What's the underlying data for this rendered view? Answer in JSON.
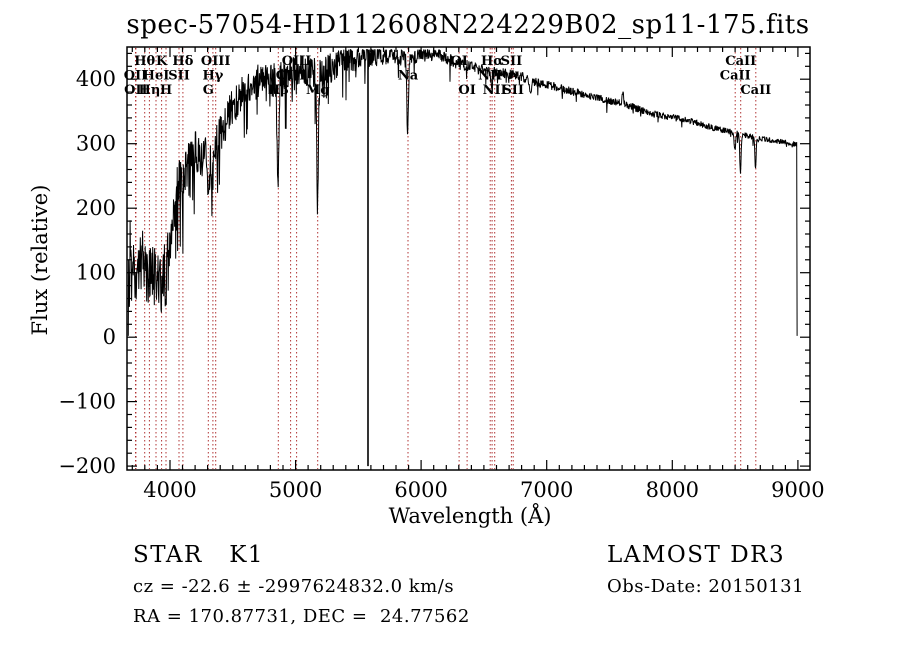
{
  "title": "spec-57054-HD112608N224229B02_sp11-175.fits",
  "colors": {
    "spectrum": "#000000",
    "line_markers": "#b03333",
    "text": "#000000",
    "background": "#ffffff"
  },
  "footer": {
    "class_label": "STAR   K1",
    "survey": "LAMOST DR3",
    "cz_line": "cz = -22.6 ± -2997624832.0 km/s",
    "obs_date": "Obs-Date: 20150131",
    "radec": "RA = 170.87731, DEC =  24.77562"
  },
  "chart_data": {
    "type": "line",
    "title": "spec-57054-HD112608N224229B02_sp11-175.fits",
    "xlabel": "Wavelength (Å)",
    "ylabel": "Flux (relative)",
    "xlim": [
      3658,
      9096
    ],
    "ylim": [
      -206,
      450
    ],
    "xticks": [
      4000,
      5000,
      6000,
      7000,
      8000,
      9000
    ],
    "yticks": [
      -200,
      -100,
      0,
      100,
      200,
      300,
      400
    ],
    "x_minor_step": 100,
    "y_minor_step": 20,
    "grid": false,
    "legend": "none",
    "spectrum_start": 3668,
    "spectrum_end": 8990,
    "sky_artifact_wavelength": 5577,
    "continuum_points": [
      [
        3668,
        5
      ],
      [
        3672,
        120
      ],
      [
        3676,
        60
      ],
      [
        3684,
        150
      ],
      [
        3692,
        95
      ],
      [
        3700,
        95
      ],
      [
        3730,
        88
      ],
      [
        3760,
        128
      ],
      [
        3800,
        105
      ],
      [
        3840,
        95
      ],
      [
        3880,
        105
      ],
      [
        3920,
        95
      ],
      [
        3960,
        115
      ],
      [
        4000,
        150
      ],
      [
        4050,
        222
      ],
      [
        4100,
        260
      ],
      [
        4150,
        270
      ],
      [
        4200,
        287
      ],
      [
        4260,
        281
      ],
      [
        4320,
        277
      ],
      [
        4380,
        303
      ],
      [
        4440,
        328
      ],
      [
        4500,
        358
      ],
      [
        4560,
        376
      ],
      [
        4620,
        388
      ],
      [
        4700,
        396
      ],
      [
        4780,
        397
      ],
      [
        4860,
        400
      ],
      [
        4940,
        410
      ],
      [
        5020,
        414
      ],
      [
        5100,
        411
      ],
      [
        5180,
        409
      ],
      [
        5260,
        414
      ],
      [
        5340,
        424
      ],
      [
        5420,
        429
      ],
      [
        5500,
        435
      ],
      [
        5580,
        437
      ],
      [
        5660,
        437
      ],
      [
        5740,
        437
      ],
      [
        5820,
        435
      ],
      [
        5900,
        429
      ],
      [
        5980,
        437
      ],
      [
        6060,
        439
      ],
      [
        6140,
        437
      ],
      [
        6220,
        431
      ],
      [
        6300,
        424
      ],
      [
        6400,
        419
      ],
      [
        6500,
        414
      ],
      [
        6600,
        411
      ],
      [
        6700,
        408
      ],
      [
        6800,
        404
      ],
      [
        6900,
        396
      ],
      [
        7000,
        391
      ],
      [
        7100,
        387
      ],
      [
        7200,
        381
      ],
      [
        7300,
        376
      ],
      [
        7400,
        371
      ],
      [
        7500,
        367
      ],
      [
        7600,
        363
      ],
      [
        7700,
        356
      ],
      [
        7800,
        349
      ],
      [
        7900,
        344
      ],
      [
        8000,
        341
      ],
      [
        8100,
        337
      ],
      [
        8200,
        332
      ],
      [
        8300,
        326
      ],
      [
        8400,
        321
      ],
      [
        8500,
        317
      ],
      [
        8600,
        312
      ],
      [
        8700,
        308
      ],
      [
        8800,
        305
      ],
      [
        8900,
        302
      ],
      [
        8985,
        299
      ]
    ],
    "absorption_features": [
      {
        "wavelength": 3933,
        "depth": 45,
        "width": 6
      },
      {
        "wavelength": 3968,
        "depth": 45,
        "width": 6
      },
      {
        "wavelength": 4101,
        "depth": 40,
        "width": 6
      },
      {
        "wavelength": 4305,
        "depth": 55,
        "width": 9
      },
      {
        "wavelength": 4340,
        "depth": 45,
        "width": 6
      },
      {
        "wavelength": 4861,
        "depth": 180,
        "width": 6
      },
      {
        "wavelength": 5175,
        "depth": 205,
        "width": 7
      },
      {
        "wavelength": 5892,
        "depth": 112,
        "width": 6
      },
      {
        "wavelength": 6563,
        "depth": 30,
        "width": 6
      },
      {
        "wavelength": 6870,
        "depth": 16,
        "width": 8
      },
      {
        "wavelength": 7605,
        "depth": -26,
        "width": 5
      },
      {
        "wavelength": 8498,
        "depth": 28,
        "width": 5
      },
      {
        "wavelength": 8542,
        "depth": 62,
        "width": 5
      },
      {
        "wavelength": 8662,
        "depth": 48,
        "width": 5
      }
    ],
    "noise_profile": [
      [
        3668,
        52
      ],
      [
        3900,
        48
      ],
      [
        4100,
        38
      ],
      [
        4300,
        33
      ],
      [
        4500,
        30
      ],
      [
        4700,
        27
      ],
      [
        5000,
        25
      ],
      [
        5300,
        24
      ],
      [
        5500,
        20
      ],
      [
        5800,
        13
      ],
      [
        6200,
        10
      ],
      [
        6600,
        8
      ],
      [
        7000,
        7
      ],
      [
        7600,
        6
      ],
      [
        8200,
        5
      ],
      [
        8990,
        4
      ]
    ],
    "spectral_lines": [
      {
        "label": "OII",
        "wavelength": 3726.0,
        "row": 2
      },
      {
        "label": "OII",
        "wavelength": 3728.8,
        "row": 3
      },
      {
        "label": "Hθ",
        "wavelength": 3799.0,
        "row": 1
      },
      {
        "label": "Hη",
        "wavelength": 3836.5,
        "row": 3
      },
      {
        "label": "HeI",
        "wavelength": 3889.0,
        "row": 2
      },
      {
        "label": "K",
        "wavelength": 3933.7,
        "row": 1
      },
      {
        "label": "H",
        "wavelength": 3968.5,
        "row": 3
      },
      {
        "label": "SII",
        "wavelength": 4072.3,
        "row": 2
      },
      {
        "label": "Hδ",
        "wavelength": 4102.9,
        "row": 1
      },
      {
        "label": "G",
        "wavelength": 4305.6,
        "row": 3
      },
      {
        "label": "Hγ",
        "wavelength": 4341.7,
        "row": 2
      },
      {
        "label": "OIII",
        "wavelength": 4364.4,
        "row": 1
      },
      {
        "label": "Hβ",
        "wavelength": 4862.7,
        "row": 3
      },
      {
        "label": "OIII",
        "wavelength": 4960.3,
        "row": 2
      },
      {
        "label": "OIII",
        "wavelength": 5008.2,
        "row": 1
      },
      {
        "label": "Mg",
        "wavelength": 5176.7,
        "row": 3
      },
      {
        "label": "Na",
        "wavelength": 5895.6,
        "row": 2
      },
      {
        "label": "OI",
        "wavelength": 6302.0,
        "row": 1
      },
      {
        "label": "OI",
        "wavelength": 6365.5,
        "row": 3
      },
      {
        "label": "NII",
        "wavelength": 6549.9,
        "row": 2
      },
      {
        "label": "Hα",
        "wavelength": 6564.6,
        "row": 1
      },
      {
        "label": "NII",
        "wavelength": 6585.3,
        "row": 3
      },
      {
        "label": "SII",
        "wavelength": 6718.3,
        "row": 1
      },
      {
        "label": "SII",
        "wavelength": 6732.7,
        "row": 3
      },
      {
        "label": "CaII",
        "wavelength": 8500.4,
        "row": 2
      },
      {
        "label": "CaII",
        "wavelength": 8544.4,
        "row": 1
      },
      {
        "label": "CaII",
        "wavelength": 8664.5,
        "row": 3
      }
    ]
  }
}
